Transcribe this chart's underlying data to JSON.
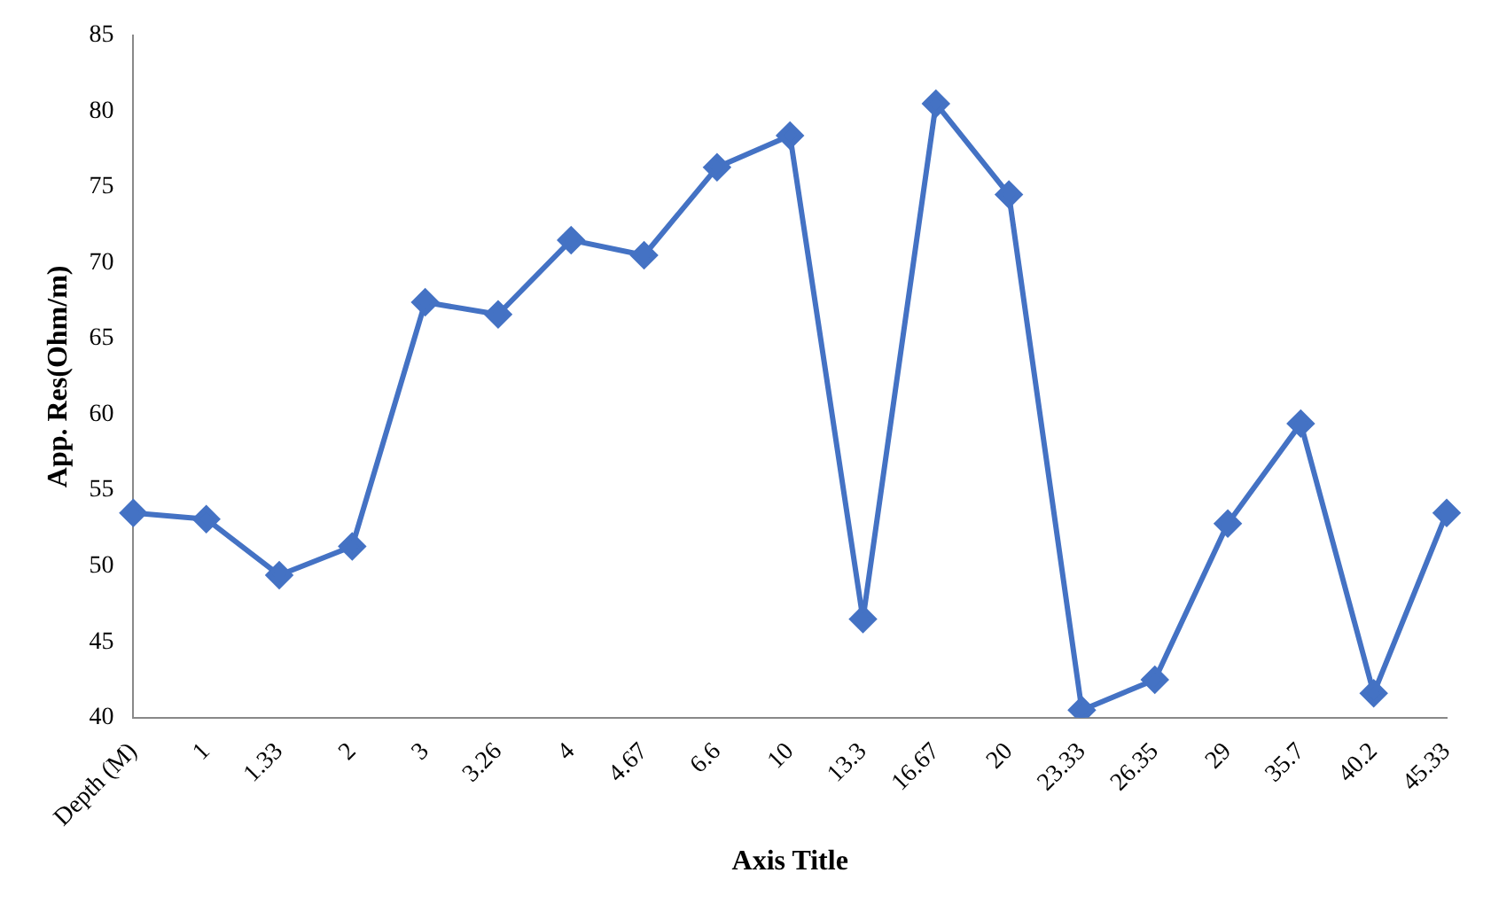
{
  "chart_data": {
    "type": "line",
    "xlabel": "Axis Title",
    "ylabel": "App. Res(Ohm/m)",
    "categories": [
      "Depth (M)",
      "1",
      "1.33",
      "2",
      "3",
      "3.26",
      "4",
      "4.67",
      "6.6",
      "10",
      "13.3",
      "16.67",
      "20",
      "23.33",
      "26.35",
      "29",
      "35.7",
      "40.2",
      "45.33"
    ],
    "series": [
      {
        "color": "#4472c4",
        "values": [
          53.5,
          53.1,
          49.4,
          51.3,
          67.4,
          66.6,
          71.5,
          70.5,
          76.3,
          78.4,
          46.5,
          80.5,
          74.5,
          40.5,
          42.5,
          52.8,
          59.4,
          41.6,
          53.5
        ]
      }
    ],
    "ylim": [
      40,
      85
    ],
    "yticks": [
      40,
      45,
      50,
      55,
      60,
      65,
      70,
      75,
      80,
      85
    ],
    "grid": false,
    "legend": false,
    "marker": "diamond",
    "line_style": "solid"
  }
}
